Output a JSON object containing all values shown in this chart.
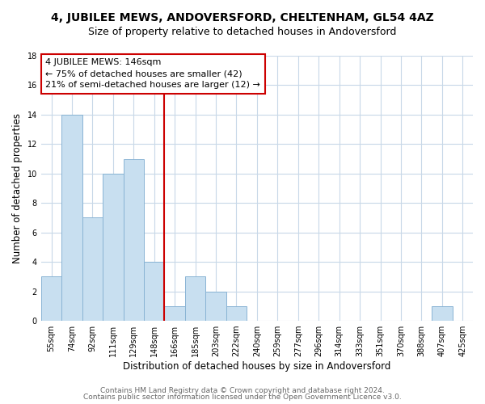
{
  "title": "4, JUBILEE MEWS, ANDOVERSFORD, CHELTENHAM, GL54 4AZ",
  "subtitle": "Size of property relative to detached houses in Andoversford",
  "xlabel": "Distribution of detached houses by size in Andoversford",
  "ylabel": "Number of detached properties",
  "bar_color": "#c8dff0",
  "bar_edge_color": "#8ab4d4",
  "vline_color": "#cc0000",
  "annotation_line1": "4 JUBILEE MEWS: 146sqm",
  "annotation_line2": "← 75% of detached houses are smaller (42)",
  "annotation_line3": "21% of semi-detached houses are larger (12) →",
  "categories": [
    "55sqm",
    "74sqm",
    "92sqm",
    "111sqm",
    "129sqm",
    "148sqm",
    "166sqm",
    "185sqm",
    "203sqm",
    "222sqm",
    "240sqm",
    "259sqm",
    "277sqm",
    "296sqm",
    "314sqm",
    "333sqm",
    "351sqm",
    "370sqm",
    "388sqm",
    "407sqm",
    "425sqm"
  ],
  "values": [
    3,
    14,
    7,
    10,
    11,
    4,
    1,
    3,
    2,
    1,
    0,
    0,
    0,
    0,
    0,
    0,
    0,
    0,
    0,
    1,
    0
  ],
  "ylim": [
    0,
    18
  ],
  "yticks": [
    0,
    2,
    4,
    6,
    8,
    10,
    12,
    14,
    16,
    18
  ],
  "footer_line1": "Contains HM Land Registry data © Crown copyright and database right 2024.",
  "footer_line2": "Contains public sector information licensed under the Open Government Licence v3.0.",
  "background_color": "#ffffff",
  "grid_color": "#c8d8e8",
  "title_fontsize": 10,
  "subtitle_fontsize": 9,
  "annotation_fontsize": 8,
  "footer_fontsize": 6.5,
  "axis_label_fontsize": 8.5,
  "tick_fontsize": 7
}
